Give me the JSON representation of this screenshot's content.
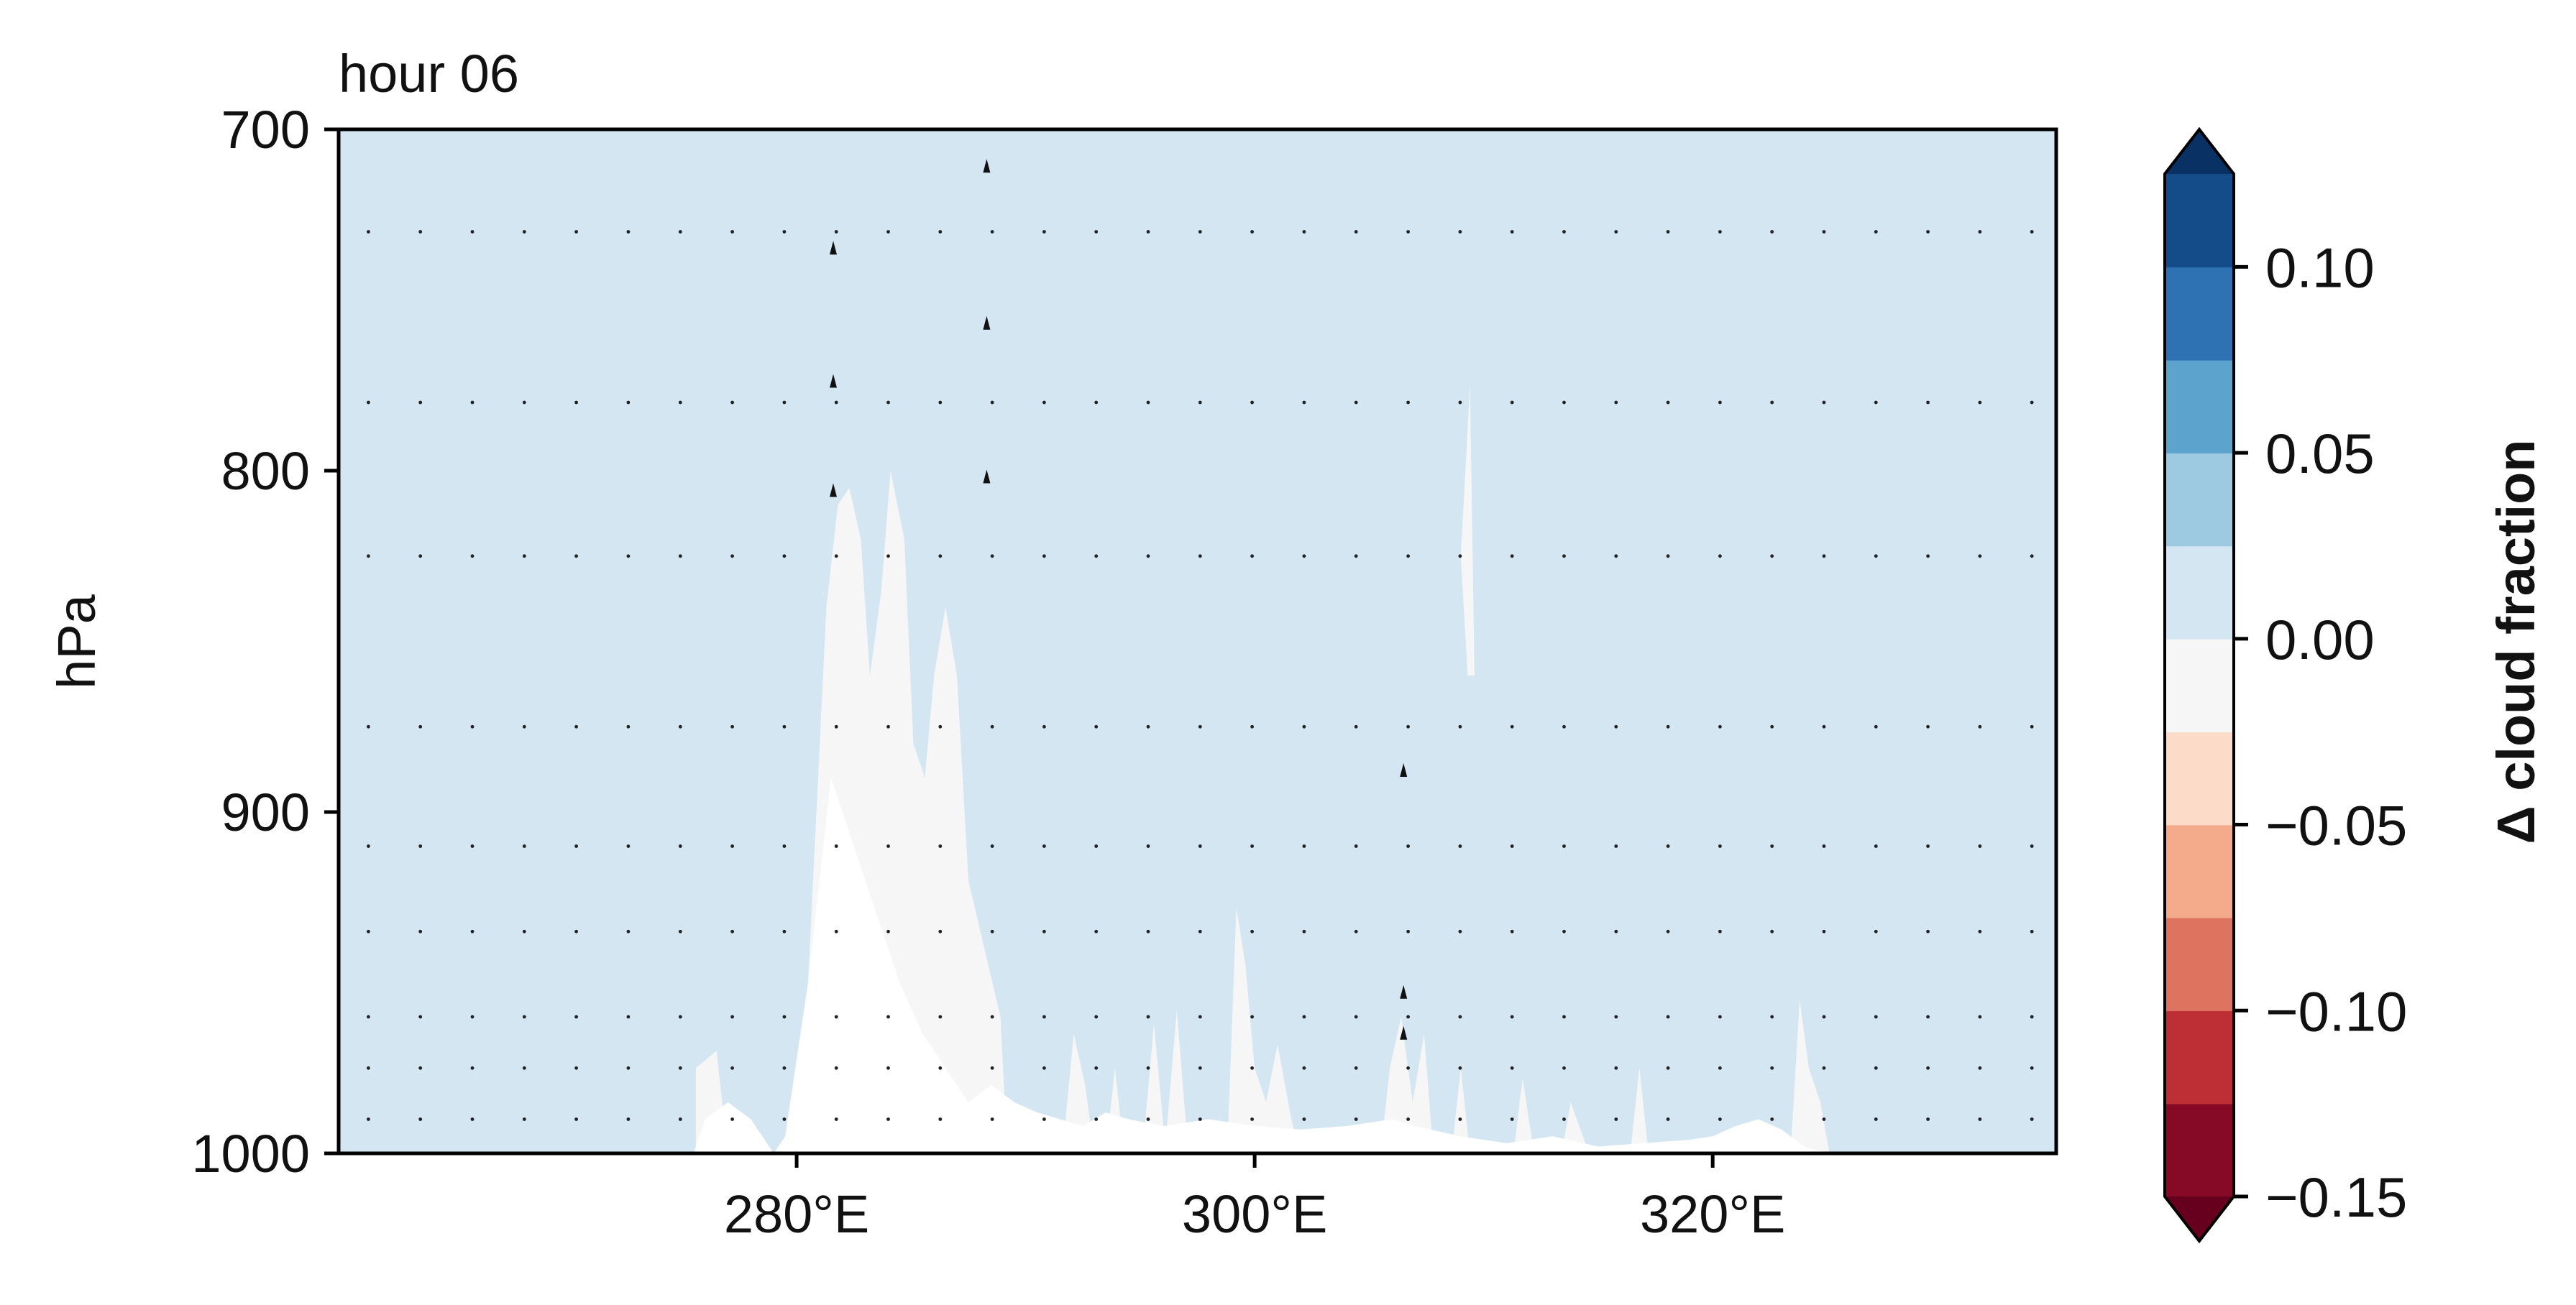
{
  "chart_data": {
    "type": "contour",
    "title": "hour 06",
    "xlabel": "",
    "ylabel": "hPa",
    "x_range": [
      260,
      335
    ],
    "y_range": [
      700,
      1000
    ],
    "y_inverted": true,
    "x_ticks": [
      {
        "value": 280,
        "label": "280°E"
      },
      {
        "value": 300,
        "label": "300°E"
      },
      {
        "value": 320,
        "label": "320°E"
      }
    ],
    "y_ticks": [
      {
        "value": 700,
        "label": "700"
      },
      {
        "value": 800,
        "label": "800"
      },
      {
        "value": 900,
        "label": "900"
      },
      {
        "value": 1000,
        "label": "1000"
      }
    ],
    "grid": false,
    "background_level": {
      "range": [
        0.0,
        0.025
      ],
      "color": "#d4e6f2"
    },
    "near_zero_level": {
      "range": [
        -0.025,
        0.0
      ],
      "color": "#f5f6f5"
    },
    "terrain_color": "#ffffff",
    "terrain_profile": [
      [
        275.5,
        1000
      ],
      [
        276,
        990
      ],
      [
        277,
        985
      ],
      [
        278,
        990
      ],
      [
        279,
        1000
      ],
      [
        279.5,
        995
      ],
      [
        280.5,
        950
      ],
      [
        281.5,
        890
      ],
      [
        282.5,
        910
      ],
      [
        283.5,
        930
      ],
      [
        284.5,
        950
      ],
      [
        285.5,
        965
      ],
      [
        286.5,
        975
      ],
      [
        287.5,
        985
      ],
      [
        288.5,
        980
      ],
      [
        289.5,
        985
      ],
      [
        290.5,
        988
      ],
      [
        291.5,
        990
      ],
      [
        292.5,
        992
      ],
      [
        293.5,
        988
      ],
      [
        294.5,
        990
      ],
      [
        296,
        992
      ],
      [
        298,
        990
      ],
      [
        300,
        992
      ],
      [
        302,
        993
      ],
      [
        304,
        992
      ],
      [
        306,
        990
      ],
      [
        307,
        992
      ],
      [
        309,
        995
      ],
      [
        311,
        997
      ],
      [
        313,
        995
      ],
      [
        315,
        998
      ],
      [
        317,
        997
      ],
      [
        319,
        996
      ],
      [
        320,
        995
      ],
      [
        321,
        992
      ],
      [
        322,
        990
      ],
      [
        323,
        993
      ],
      [
        324,
        998
      ],
      [
        325,
        1000
      ]
    ],
    "near_zero_regions": [
      [
        [
          275.6,
          1000
        ],
        [
          275.6,
          975
        ],
        [
          276.5,
          970
        ],
        [
          277,
          1000
        ]
      ],
      [
        [
          280.5,
          1000
        ],
        [
          280.5,
          950
        ],
        [
          281.3,
          840
        ],
        [
          281.8,
          810
        ],
        [
          282.3,
          805
        ],
        [
          282.8,
          820
        ],
        [
          283.2,
          860
        ],
        [
          283.7,
          835
        ],
        [
          284.1,
          800
        ],
        [
          284.7,
          820
        ],
        [
          285.1,
          880
        ],
        [
          285.6,
          890
        ],
        [
          286.0,
          860
        ],
        [
          286.5,
          840
        ],
        [
          287.0,
          860
        ],
        [
          287.5,
          920
        ],
        [
          288.2,
          940
        ],
        [
          288.9,
          960
        ],
        [
          289.2,
          1000
        ]
      ],
      [
        [
          291.6,
          1000
        ],
        [
          292.1,
          965
        ],
        [
          292.6,
          980
        ],
        [
          293.0,
          1000
        ]
      ],
      [
        [
          293.5,
          1000
        ],
        [
          293.9,
          975
        ],
        [
          294.3,
          1000
        ]
      ],
      [
        [
          295.1,
          1000
        ],
        [
          295.6,
          962
        ],
        [
          296.1,
          998
        ],
        [
          296.6,
          958
        ],
        [
          297.1,
          1000
        ]
      ],
      [
        [
          298.8,
          1000
        ],
        [
          299.2,
          928
        ],
        [
          299.6,
          945
        ],
        [
          300.0,
          975
        ],
        [
          300.5,
          985
        ],
        [
          301.0,
          968
        ],
        [
          301.6,
          990
        ],
        [
          302.0,
          1000
        ]
      ],
      [
        [
          305.5,
          1000
        ],
        [
          305.9,
          975
        ],
        [
          306.4,
          960
        ],
        [
          306.9,
          985
        ],
        [
          307.4,
          965
        ],
        [
          307.8,
          1000
        ]
      ],
      [
        [
          308.6,
          1000
        ],
        [
          309.0,
          975
        ],
        [
          309.4,
          1000
        ]
      ],
      [
        [
          309.0,
          825
        ],
        [
          309.4,
          775
        ],
        [
          309.6,
          860
        ],
        [
          309.3,
          860
        ]
      ],
      [
        [
          311.3,
          1000
        ],
        [
          311.7,
          978
        ],
        [
          312.2,
          1000
        ]
      ],
      [
        [
          313.4,
          1000
        ],
        [
          313.8,
          985
        ],
        [
          314.6,
          1000
        ]
      ],
      [
        [
          316.4,
          1000
        ],
        [
          316.8,
          975
        ],
        [
          317.2,
          1000
        ]
      ],
      [
        [
          323.4,
          1000
        ],
        [
          323.8,
          955
        ],
        [
          324.2,
          975
        ],
        [
          324.7,
          985
        ],
        [
          325.1,
          1000
        ]
      ]
    ],
    "stipple_grid": {
      "x_start": 261.3,
      "x_step": 2.27,
      "rows_hpa": [
        730,
        780,
        825,
        875,
        910,
        935,
        960,
        975,
        990
      ]
    },
    "arrow_marks": [
      [
        288.3,
        711
      ],
      [
        281.6,
        735
      ],
      [
        288.3,
        757
      ],
      [
        281.6,
        774
      ],
      [
        288.3,
        802
      ],
      [
        281.6,
        806
      ],
      [
        306.5,
        888
      ],
      [
        306.5,
        953
      ],
      [
        306.5,
        965
      ]
    ],
    "colorbar": {
      "label": "Δ cloud fraction",
      "levels": [
        -0.15,
        -0.125,
        -0.1,
        -0.075,
        -0.05,
        -0.025,
        0.0,
        0.025,
        0.05,
        0.075,
        0.1,
        0.125
      ],
      "colors": [
        "#860a25",
        "#be2e35",
        "#de7360",
        "#f3ab8c",
        "#fcdbc9",
        "#f5f6f5",
        "#d4e6f2",
        "#9ecae1",
        "#5ca3cd",
        "#2f72b4",
        "#134c88"
      ],
      "extend_min_color": "#67001f",
      "extend_max_color": "#0a3164",
      "ticks": [
        {
          "value": 0.1,
          "label": "0.10"
        },
        {
          "value": 0.05,
          "label": "0.05"
        },
        {
          "value": 0.0,
          "label": "0.00"
        },
        {
          "value": -0.05,
          "label": "−0.05"
        },
        {
          "value": -0.1,
          "label": "−0.10"
        },
        {
          "value": -0.15,
          "label": "−0.15"
        }
      ]
    }
  }
}
